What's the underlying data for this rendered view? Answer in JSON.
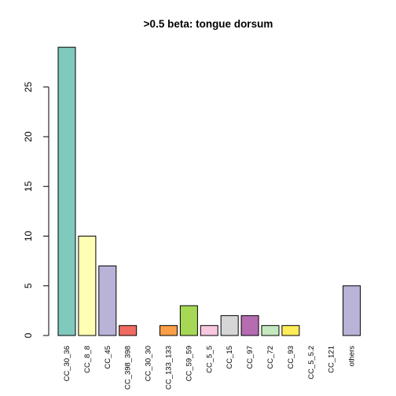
{
  "chart_data": {
    "type": "bar",
    "title": ">0.5 beta:  tongue dorsum",
    "xlabel": "",
    "ylabel": "",
    "ylim": [
      0,
      29
    ],
    "yticks": [
      0,
      5,
      10,
      15,
      20,
      25
    ],
    "categories": [
      "CC_30_36",
      "CC_8_8",
      "CC_45",
      "CC_398_398",
      "CC_30_30",
      "CC_133_133",
      "CC_59_59",
      "CC_5_5",
      "CC_15",
      "CC_97",
      "CC_72",
      "CC_93",
      "CC_5_5.2",
      "CC_121",
      "others"
    ],
    "values": [
      29,
      10,
      7,
      1,
      0,
      1,
      3,
      1,
      2,
      2,
      1,
      1,
      0,
      0,
      5
    ],
    "colors": [
      "#7fc9bd",
      "#ffffb3",
      "#bab3d8",
      "#f06b60",
      "#7fb2d3",
      "#f99f48",
      "#a6d855",
      "#f8c8e0",
      "#d6d6d6",
      "#b56cb1",
      "#c4e9be",
      "#ffec5a",
      "#7fc9bd",
      "#ffffb3",
      "#bab3d8"
    ],
    "grid": false,
    "legend": "none"
  }
}
